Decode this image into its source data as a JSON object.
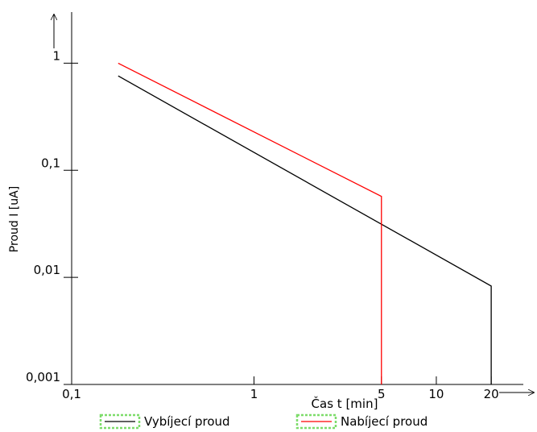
{
  "chart_data": {
    "type": "line",
    "log_x": true,
    "log_y": true,
    "x_label": "Čas t [min]",
    "y_label": "Proud I [uA]",
    "xlim": [
      0.1,
      30
    ],
    "ylim": [
      0.001,
      3
    ],
    "xticks": [
      {
        "value": 0.1,
        "label": "0,1"
      },
      1,
      5,
      10,
      20
    ],
    "yticks": [
      {
        "value": 0.001,
        "label": "0,001"
      },
      {
        "value": 0.01,
        "label": "0,01"
      },
      {
        "value": 0.1,
        "label": "0,1"
      },
      1
    ],
    "legend": "bottom",
    "series": [
      {
        "name": "Vybíjecí proud",
        "color": "#000000",
        "x": [
          0.18,
          20,
          20
        ],
        "values": [
          0.76,
          0.0083,
          0.001
        ]
      },
      {
        "name": "Nabíjecí proud",
        "color": "#ff0000",
        "x": [
          0.18,
          5,
          5
        ],
        "values": [
          1,
          0.057,
          0.001
        ]
      }
    ]
  }
}
